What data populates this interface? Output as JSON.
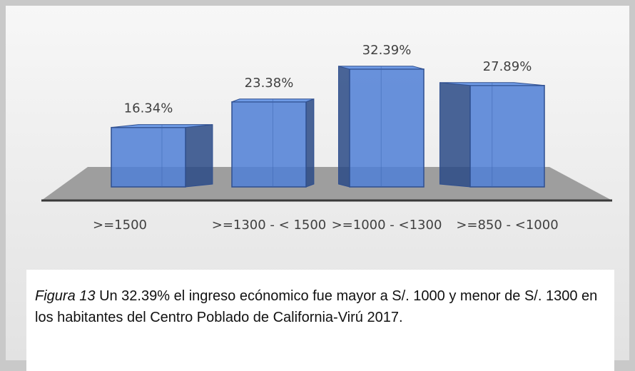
{
  "chart_data": {
    "type": "bar3d",
    "categories": [
      ">=1500",
      ">=1300 - < 1500",
      ">=1000 - <1300",
      ">=850 - <1000"
    ],
    "values": [
      16.34,
      23.38,
      32.39,
      27.89
    ],
    "value_labels": [
      "16.34%",
      "23.38%",
      "32.39%",
      "27.89%"
    ],
    "color": "#4f7fd6",
    "figure_label": "Figura 13",
    "caption": "Un 32.39% el ingreso ecónomico fue mayor a S/. 1000 y menor de S/. 1300 en los habitantes del Centro Poblado de California-Virú 2017."
  }
}
